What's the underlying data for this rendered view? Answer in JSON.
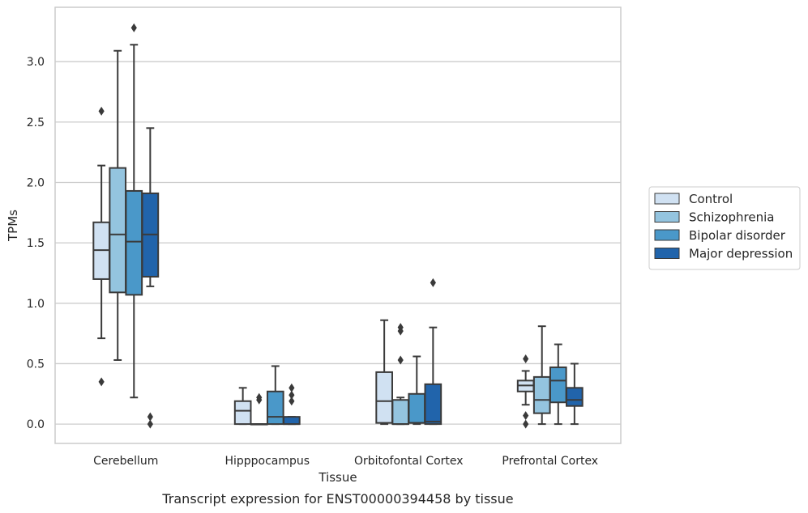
{
  "chart_data": {
    "type": "box",
    "title": "",
    "caption": "Transcript expression for ENST00000394458 by tissue",
    "xlabel": "Tissue",
    "ylabel": "TPMs",
    "ylim": [
      -0.16,
      3.45
    ],
    "yticks": [
      "0.0",
      "0.5",
      "1.0",
      "1.5",
      "2.0",
      "2.5",
      "3.0"
    ],
    "grid": true,
    "legend_position": "right",
    "categories": [
      "Cerebellum",
      "Hipppocampus",
      "Orbitofontal Cortex",
      "Prefrontal Cortex"
    ],
    "series": [
      {
        "name": "Control",
        "color": "#d0e1f2",
        "boxes": [
          {
            "whisker_low": 0.71,
            "q1": 1.2,
            "median": 1.44,
            "q3": 1.67,
            "whisker_high": 2.14,
            "outliers": [
              2.59,
              0.35
            ]
          },
          {
            "whisker_low": 0.0,
            "q1": 0.0,
            "median": 0.11,
            "q3": 0.19,
            "whisker_high": 0.3,
            "outliers": []
          },
          {
            "whisker_low": 0.0,
            "q1": 0.01,
            "median": 0.19,
            "q3": 0.43,
            "whisker_high": 0.86,
            "outliers": []
          },
          {
            "whisker_low": 0.16,
            "q1": 0.27,
            "median": 0.32,
            "q3": 0.36,
            "whisker_high": 0.44,
            "outliers": [
              0.54,
              0.07,
              0.0
            ]
          }
        ]
      },
      {
        "name": "Schizophrenia",
        "color": "#94c4df",
        "boxes": [
          {
            "whisker_low": 0.53,
            "q1": 1.09,
            "median": 1.57,
            "q3": 2.12,
            "whisker_high": 3.09,
            "outliers": []
          },
          {
            "whisker_low": 0.0,
            "q1": 0.0,
            "median": 0.0,
            "q3": 0.0,
            "whisker_high": 0.0,
            "outliers": [
              0.2,
              0.22
            ]
          },
          {
            "whisker_low": 0.0,
            "q1": 0.0,
            "median": 0.0,
            "q3": 0.2,
            "whisker_high": 0.22,
            "outliers": [
              0.8,
              0.77,
              0.53
            ]
          },
          {
            "whisker_low": 0.0,
            "q1": 0.09,
            "median": 0.2,
            "q3": 0.39,
            "whisker_high": 0.81,
            "outliers": []
          }
        ]
      },
      {
        "name": "Bipolar disorder",
        "color": "#4a98c9",
        "boxes": [
          {
            "whisker_low": 0.22,
            "q1": 1.07,
            "median": 1.51,
            "q3": 1.93,
            "whisker_high": 3.14,
            "outliers": [
              3.28
            ]
          },
          {
            "whisker_low": 0.0,
            "q1": 0.0,
            "median": 0.06,
            "q3": 0.27,
            "whisker_high": 0.48,
            "outliers": []
          },
          {
            "whisker_low": 0.0,
            "q1": 0.01,
            "median": 0.01,
            "q3": 0.25,
            "whisker_high": 0.56,
            "outliers": []
          },
          {
            "whisker_low": 0.0,
            "q1": 0.18,
            "median": 0.36,
            "q3": 0.47,
            "whisker_high": 0.66,
            "outliers": []
          }
        ]
      },
      {
        "name": "Major depression",
        "color": "#2164ab",
        "boxes": [
          {
            "whisker_low": 1.14,
            "q1": 1.22,
            "median": 1.57,
            "q3": 1.91,
            "whisker_high": 2.45,
            "outliers": [
              0.06,
              0.0
            ]
          },
          {
            "whisker_low": 0.0,
            "q1": 0.0,
            "median": 0.0,
            "q3": 0.06,
            "whisker_high": 0.06,
            "outliers": [
              0.3,
              0.24,
              0.19
            ]
          },
          {
            "whisker_low": 0.0,
            "q1": 0.0,
            "median": 0.02,
            "q3": 0.33,
            "whisker_high": 0.8,
            "outliers": [
              1.17
            ]
          },
          {
            "whisker_low": 0.0,
            "q1": 0.15,
            "median": 0.2,
            "q3": 0.3,
            "whisker_high": 0.5,
            "outliers": []
          }
        ]
      }
    ]
  }
}
